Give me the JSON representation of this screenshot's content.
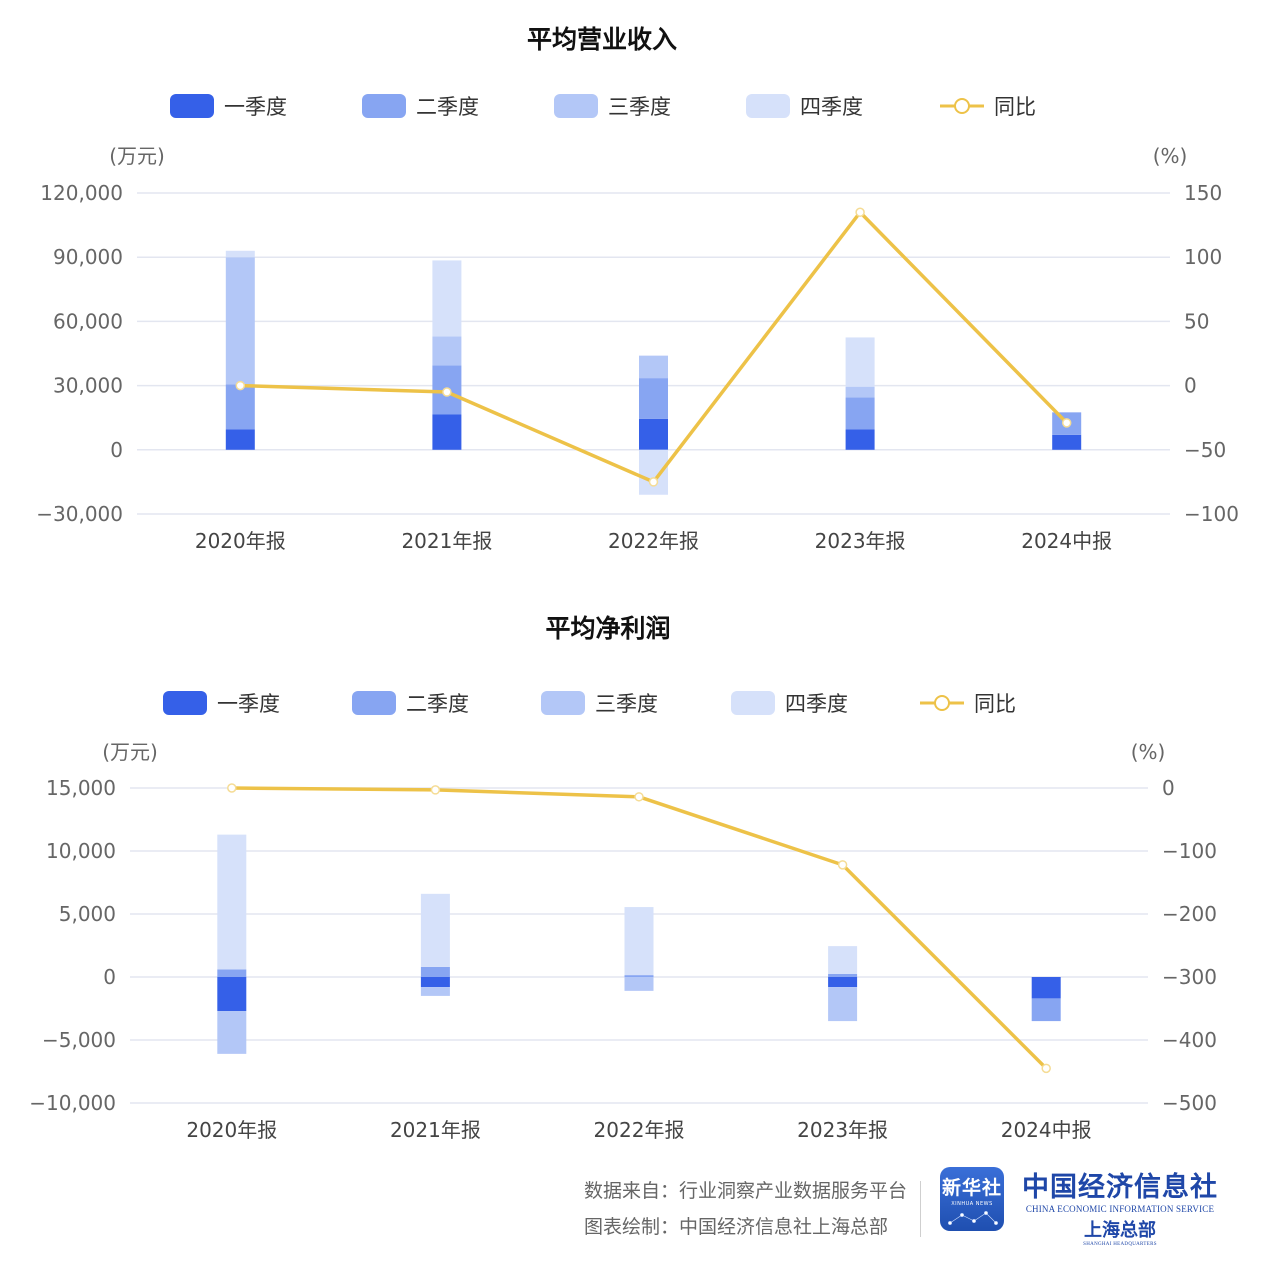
{
  "colors": {
    "q1": "#3560e8",
    "q2": "#87a5f2",
    "q3": "#b3c7f7",
    "q4": "#d6e1fa",
    "yoy": "#edc248",
    "grid": "#e3e6f0",
    "axis_text": "#666666"
  },
  "chart_data": [
    {
      "type": "bar",
      "title": "平均营业收入",
      "categories": [
        "2020年报",
        "2021年报",
        "2022年报",
        "2023年报",
        "2024中报"
      ],
      "legend": [
        "一季度",
        "二季度",
        "三季度",
        "四季度",
        "同比"
      ],
      "y_left_unit": "(万元)",
      "y_right_unit": "(%)",
      "y_left_ticks": [
        "120,000",
        "90,000",
        "60,000",
        "30,000",
        "0",
        "−30,000"
      ],
      "y_right_ticks": [
        "150",
        "100",
        "50",
        "0",
        "−50",
        "−100"
      ],
      "ylim_left": [
        -30000,
        120000
      ],
      "ylim_right": [
        -100,
        150
      ],
      "stacked": true,
      "series": [
        {
          "name": "一季度",
          "values": [
            9500,
            16500,
            14500,
            9500,
            7000
          ]
        },
        {
          "name": "二季度",
          "values": [
            21000,
            23000,
            19000,
            15000,
            10500
          ]
        },
        {
          "name": "三季度",
          "values": [
            59500,
            13500,
            10500,
            5000,
            0
          ]
        },
        {
          "name": "四季度",
          "values": [
            3000,
            35500,
            -21000,
            23000,
            0
          ]
        }
      ],
      "line": {
        "name": "同比",
        "values": [
          0,
          -5,
          -75,
          135,
          -29
        ]
      }
    },
    {
      "type": "bar",
      "title": "平均净利润",
      "categories": [
        "2020年报",
        "2021年报",
        "2022年报",
        "2023年报",
        "2024中报"
      ],
      "legend": [
        "一季度",
        "二季度",
        "三季度",
        "四季度",
        "同比"
      ],
      "y_left_unit": "(万元)",
      "y_right_unit": "(%)",
      "y_left_ticks": [
        "15,000",
        "10,000",
        "5,000",
        "0",
        "−5,000",
        "−10,000"
      ],
      "y_right_ticks": [
        "0",
        "−100",
        "−200",
        "−300",
        "−400",
        "−500"
      ],
      "ylim_left": [
        -10000,
        15000
      ],
      "ylim_right": [
        -500,
        0
      ],
      "stacked": true,
      "series": [
        {
          "name": "一季度",
          "values": [
            -2700,
            -800,
            0,
            -800,
            -1700
          ]
        },
        {
          "name": "二季度",
          "values": [
            600,
            800,
            150,
            250,
            -1800
          ]
        },
        {
          "name": "三季度",
          "values": [
            -3400,
            -700,
            -1100,
            -2700,
            0
          ]
        },
        {
          "name": "四季度",
          "values": [
            10700,
            5800,
            5400,
            2200,
            0
          ]
        }
      ],
      "line": {
        "name": "同比",
        "values": [
          0,
          -3,
          -14,
          -122,
          -445
        ]
      }
    }
  ],
  "footer": {
    "source": "数据来自：行业洞察产业数据服务平台",
    "credit": "图表绘制：中国经济信息社上海总部",
    "logo_xinhua": "新华社",
    "logo_xinhua_en": "XINHUA NEWS",
    "logo_ceis_cn": "中国经济信息社",
    "logo_ceis_en": "CHINA ECONOMIC INFORMATION SERVICE",
    "logo_ceis_sub": "上海总部",
    "logo_ceis_sub_en": "SHANGHAI HEADQUARTERS"
  }
}
